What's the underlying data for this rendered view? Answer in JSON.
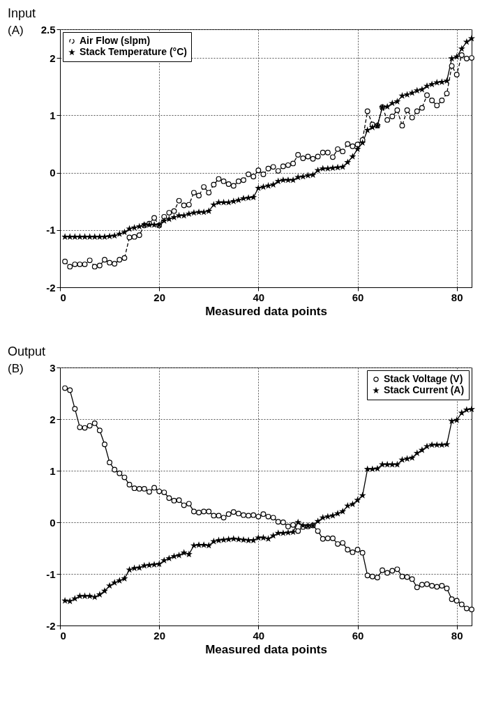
{
  "chart_data": [
    {
      "type": "line",
      "title": "Input",
      "xlabel": "Measured data points",
      "annotations": [
        "(A)"
      ],
      "xlim": [
        0,
        83
      ],
      "xticks": [
        0,
        20,
        40,
        60,
        80
      ],
      "ylim": [
        -2,
        2.5
      ],
      "yticks": [
        -2,
        -1,
        0,
        1,
        2,
        2.5
      ],
      "grid": true,
      "legend": "top left",
      "x": [
        1,
        2,
        3,
        4,
        5,
        6,
        7,
        8,
        9,
        10,
        11,
        12,
        13,
        14,
        15,
        16,
        17,
        18,
        19,
        20,
        21,
        22,
        23,
        24,
        25,
        26,
        27,
        28,
        29,
        30,
        31,
        32,
        33,
        34,
        35,
        36,
        37,
        38,
        39,
        40,
        41,
        42,
        43,
        44,
        45,
        46,
        47,
        48,
        49,
        50,
        51,
        52,
        53,
        54,
        55,
        56,
        57,
        58,
        59,
        60,
        61,
        62,
        63,
        64,
        65,
        66,
        67,
        68,
        69,
        70,
        71,
        72,
        73,
        74,
        75,
        76,
        77,
        78,
        79,
        80,
        81,
        82,
        83
      ],
      "series": [
        {
          "name": "Air Flow (slpm)",
          "color": "#000000",
          "marker": "circle",
          "line_style": "dashed",
          "values": [
            -1.55,
            -1.64,
            -1.6,
            -1.6,
            -1.6,
            -1.53,
            -1.64,
            -1.62,
            -1.52,
            -1.57,
            -1.59,
            -1.52,
            -1.49,
            -1.13,
            -1.12,
            -1.09,
            -0.92,
            -0.89,
            -0.79,
            -0.92,
            -0.77,
            -0.7,
            -0.67,
            -0.49,
            -0.57,
            -0.56,
            -0.35,
            -0.4,
            -0.25,
            -0.35,
            -0.21,
            -0.11,
            -0.15,
            -0.2,
            -0.23,
            -0.15,
            -0.13,
            -0.03,
            -0.07,
            0.04,
            -0.03,
            0.07,
            0.1,
            0.03,
            0.11,
            0.13,
            0.16,
            0.31,
            0.25,
            0.28,
            0.24,
            0.28,
            0.35,
            0.35,
            0.27,
            0.41,
            0.37,
            0.5,
            0.46,
            0.49,
            0.57,
            1.07,
            0.84,
            0.82,
            1.14,
            0.92,
            0.98,
            1.09,
            0.82,
            1.09,
            0.96,
            1.07,
            1.13,
            1.35,
            1.26,
            1.17,
            1.26,
            1.38,
            1.86,
            1.71,
            2.05,
            1.99,
            2.0
          ]
        },
        {
          "name": "Stack Temperature (°C)",
          "color": "#000000",
          "marker": "star",
          "line_style": "solid",
          "values": [
            -1.12,
            -1.12,
            -1.12,
            -1.12,
            -1.12,
            -1.12,
            -1.12,
            -1.12,
            -1.12,
            -1.11,
            -1.1,
            -1.07,
            -1.04,
            -0.98,
            -0.96,
            -0.94,
            -0.91,
            -0.91,
            -0.91,
            -0.91,
            -0.84,
            -0.81,
            -0.78,
            -0.75,
            -0.75,
            -0.72,
            -0.7,
            -0.69,
            -0.69,
            -0.67,
            -0.56,
            -0.52,
            -0.52,
            -0.52,
            -0.5,
            -0.48,
            -0.45,
            -0.44,
            -0.43,
            -0.27,
            -0.25,
            -0.23,
            -0.21,
            -0.15,
            -0.13,
            -0.13,
            -0.13,
            -0.08,
            -0.07,
            -0.05,
            -0.04,
            0.04,
            0.07,
            0.07,
            0.08,
            0.09,
            0.1,
            0.18,
            0.28,
            0.41,
            0.52,
            0.74,
            0.79,
            0.82,
            1.14,
            1.15,
            1.21,
            1.24,
            1.34,
            1.36,
            1.39,
            1.43,
            1.45,
            1.51,
            1.54,
            1.57,
            1.58,
            1.6,
            1.99,
            2.02,
            2.16,
            2.28,
            2.34
          ]
        }
      ]
    },
    {
      "type": "line",
      "title": "Output",
      "xlabel": "Measured data points",
      "annotations": [
        "(B)"
      ],
      "xlim": [
        0,
        83
      ],
      "xticks": [
        0,
        20,
        40,
        60,
        80
      ],
      "ylim": [
        -2,
        3
      ],
      "yticks": [
        -2,
        -1,
        0,
        1,
        2,
        3
      ],
      "grid": true,
      "legend": "top right",
      "x": [
        1,
        2,
        3,
        4,
        5,
        6,
        7,
        8,
        9,
        10,
        11,
        12,
        13,
        14,
        15,
        16,
        17,
        18,
        19,
        20,
        21,
        22,
        23,
        24,
        25,
        26,
        27,
        28,
        29,
        30,
        31,
        32,
        33,
        34,
        35,
        36,
        37,
        38,
        39,
        40,
        41,
        42,
        43,
        44,
        45,
        46,
        47,
        48,
        49,
        50,
        51,
        52,
        53,
        54,
        55,
        56,
        57,
        58,
        59,
        60,
        61,
        62,
        63,
        64,
        65,
        66,
        67,
        68,
        69,
        70,
        71,
        72,
        73,
        74,
        75,
        76,
        77,
        78,
        79,
        80,
        81,
        82,
        83
      ],
      "series": [
        {
          "name": "Stack Voltage (V)",
          "color": "#000000",
          "marker": "circle",
          "line_style": "solid",
          "values": [
            2.6,
            2.56,
            2.2,
            1.84,
            1.83,
            1.87,
            1.92,
            1.78,
            1.51,
            1.16,
            1.02,
            0.95,
            0.87,
            0.73,
            0.66,
            0.65,
            0.65,
            0.59,
            0.67,
            0.6,
            0.58,
            0.47,
            0.42,
            0.43,
            0.33,
            0.36,
            0.21,
            0.19,
            0.21,
            0.21,
            0.13,
            0.13,
            0.09,
            0.16,
            0.2,
            0.17,
            0.14,
            0.13,
            0.14,
            0.11,
            0.16,
            0.11,
            0.09,
            0.01,
            0.0,
            -0.08,
            -0.05,
            -0.17,
            -0.09,
            -0.08,
            -0.06,
            -0.17,
            -0.32,
            -0.31,
            -0.31,
            -0.42,
            -0.4,
            -0.53,
            -0.58,
            -0.53,
            -0.59,
            -1.03,
            -1.05,
            -1.07,
            -0.93,
            -0.98,
            -0.94,
            -0.91,
            -1.05,
            -1.06,
            -1.1,
            -1.26,
            -1.21,
            -1.2,
            -1.23,
            -1.25,
            -1.23,
            -1.28,
            -1.49,
            -1.52,
            -1.59,
            -1.67,
            -1.69
          ]
        },
        {
          "name": "Stack Current (A)",
          "color": "#000000",
          "marker": "star",
          "line_style": "solid",
          "values": [
            -1.52,
            -1.53,
            -1.48,
            -1.43,
            -1.43,
            -1.43,
            -1.45,
            -1.4,
            -1.33,
            -1.23,
            -1.17,
            -1.13,
            -1.09,
            -0.92,
            -0.89,
            -0.88,
            -0.84,
            -0.83,
            -0.82,
            -0.81,
            -0.74,
            -0.7,
            -0.66,
            -0.64,
            -0.59,
            -0.62,
            -0.45,
            -0.44,
            -0.44,
            -0.45,
            -0.37,
            -0.35,
            -0.34,
            -0.33,
            -0.32,
            -0.33,
            -0.34,
            -0.35,
            -0.35,
            -0.3,
            -0.3,
            -0.32,
            -0.26,
            -0.21,
            -0.21,
            -0.2,
            -0.19,
            0.0,
            -0.06,
            -0.07,
            -0.06,
            0.02,
            0.09,
            0.11,
            0.13,
            0.17,
            0.21,
            0.32,
            0.35,
            0.43,
            0.52,
            1.03,
            1.03,
            1.04,
            1.12,
            1.12,
            1.12,
            1.12,
            1.21,
            1.23,
            1.25,
            1.34,
            1.4,
            1.47,
            1.5,
            1.5,
            1.5,
            1.51,
            1.96,
            1.98,
            2.12,
            2.18,
            2.19
          ]
        }
      ]
    }
  ]
}
